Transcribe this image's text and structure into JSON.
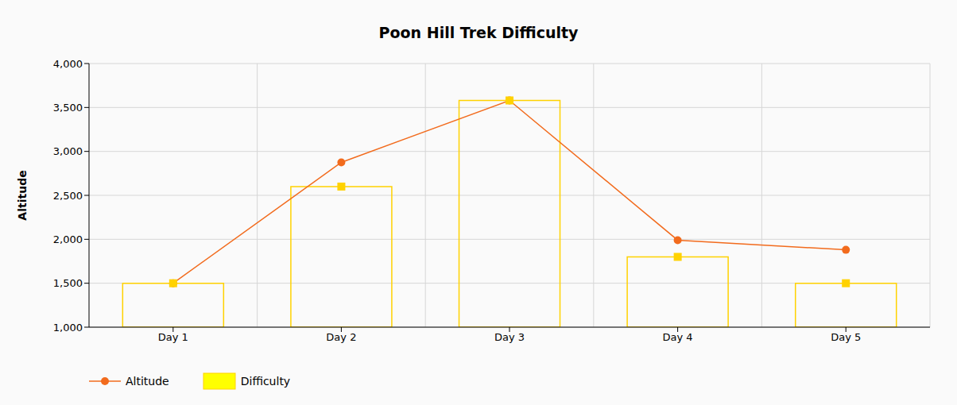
{
  "chart_data": {
    "type": "bar",
    "title": "Poon Hill Trek Difficulty",
    "y_label": "Altitude",
    "categories": [
      "Day 1",
      "Day 2",
      "Day 3",
      "Day 4",
      "Day 5"
    ],
    "series": [
      {
        "name": "Altitude",
        "type": "line",
        "color": "#f26b1d",
        "marker": "circle",
        "values": [
          1500,
          2875,
          3580,
          1990,
          1880
        ]
      },
      {
        "name": "Difficulty",
        "type": "bar",
        "color": "#ffd200",
        "marker": "square",
        "values": [
          1500,
          2600,
          3580,
          1800,
          1500
        ]
      }
    ],
    "ylim": [
      1000,
      4000
    ],
    "yticks": [
      {
        "value": 1000,
        "label": "1,000"
      },
      {
        "value": 1500,
        "label": "1,500"
      },
      {
        "value": 2000,
        "label": "2,000"
      },
      {
        "value": 2500,
        "label": "2,500"
      },
      {
        "value": 3000,
        "label": "3,000"
      },
      {
        "value": 3500,
        "label": "3,500"
      },
      {
        "value": 4000,
        "label": "4,000"
      }
    ],
    "grid": true,
    "legend": "bottom"
  }
}
